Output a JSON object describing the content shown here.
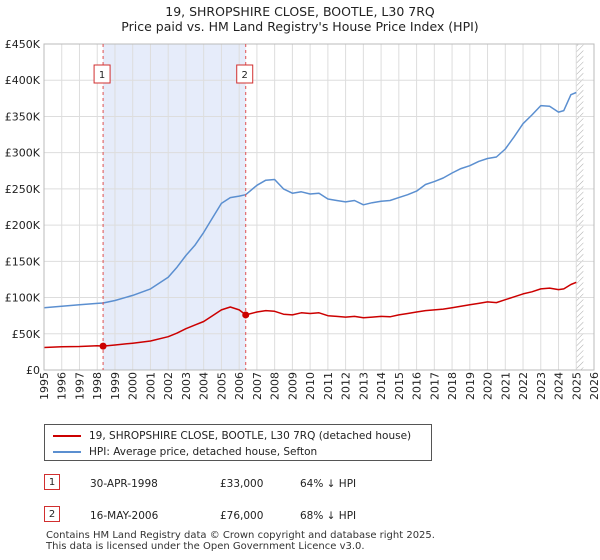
{
  "title_line1": "19, SHROPSHIRE CLOSE, BOOTLE, L30 7RQ",
  "title_line2": "Price paid vs. HM Land Registry's House Price Index (HPI)",
  "chart_data": {
    "type": "line",
    "title": "Price paid vs. HM Land Registry's House Price Index (HPI)",
    "xlabel": "",
    "ylabel": "",
    "xlim": [
      1995,
      2026
    ],
    "ylim": [
      0,
      450000
    ],
    "grid": true,
    "yticks": [
      {
        "value": 0,
        "label": "£0"
      },
      {
        "value": 50000,
        "label": "£50K"
      },
      {
        "value": 100000,
        "label": "£100K"
      },
      {
        "value": 150000,
        "label": "£150K"
      },
      {
        "value": 200000,
        "label": "£200K"
      },
      {
        "value": 250000,
        "label": "£250K"
      },
      {
        "value": 300000,
        "label": "£300K"
      },
      {
        "value": 350000,
        "label": "£350K"
      },
      {
        "value": 400000,
        "label": "£400K"
      },
      {
        "value": 450000,
        "label": "£450K"
      }
    ],
    "xticks": [
      "1995",
      "1996",
      "1997",
      "1998",
      "1999",
      "2000",
      "2001",
      "2002",
      "2003",
      "2004",
      "2005",
      "2006",
      "2007",
      "2008",
      "2009",
      "2010",
      "2011",
      "2012",
      "2013",
      "2014",
      "2015",
      "2016",
      "2017",
      "2018",
      "2019",
      "2020",
      "2021",
      "2022",
      "2023",
      "2024",
      "2025",
      "2026"
    ],
    "shaded_period": [
      1998.33,
      2006.37
    ],
    "forecast_from": 2025.0,
    "series": [
      {
        "name": "19, SHROPSHIRE CLOSE, BOOTLE, L30 7RQ (detached house)",
        "color": "#cc0000",
        "x": [
          1995.0,
          1996.0,
          1997.0,
          1998.0,
          1998.33,
          1999.0,
          2000.0,
          2001.0,
          2002.0,
          2002.5,
          2003.0,
          2003.5,
          2004.0,
          2004.5,
          2005.0,
          2005.5,
          2006.0,
          2006.37,
          2007.0,
          2007.5,
          2008.0,
          2008.5,
          2009.0,
          2009.5,
          2010.0,
          2010.5,
          2011.0,
          2011.5,
          2012.0,
          2012.5,
          2013.0,
          2013.5,
          2014.0,
          2014.5,
          2015.0,
          2015.5,
          2016.0,
          2016.5,
          2017.0,
          2017.5,
          2018.0,
          2018.5,
          2019.0,
          2019.5,
          2020.0,
          2020.5,
          2021.0,
          2021.5,
          2022.0,
          2022.5,
          2023.0,
          2023.5,
          2024.0,
          2024.3,
          2024.7,
          2025.0
        ],
        "y": [
          31000,
          32000,
          32500,
          33500,
          33000,
          34500,
          37000,
          40000,
          46000,
          51000,
          57000,
          62000,
          67000,
          75000,
          83000,
          87000,
          83000,
          76000,
          80000,
          82000,
          81000,
          77000,
          76000,
          79000,
          78000,
          79000,
          75000,
          74000,
          73000,
          74000,
          72000,
          73000,
          74000,
          73500,
          76000,
          78000,
          80000,
          82000,
          83000,
          84000,
          86000,
          88000,
          90000,
          92000,
          94000,
          93000,
          97000,
          101000,
          105000,
          108000,
          112000,
          113000,
          111000,
          112000,
          118000,
          121000
        ]
      },
      {
        "name": "HPI: Average price, detached house, Sefton",
        "color": "#5b8fd0",
        "x": [
          1995.0,
          1996.0,
          1997.0,
          1998.0,
          1998.33,
          1999.0,
          2000.0,
          2001.0,
          2002.0,
          2002.5,
          2003.0,
          2003.5,
          2004.0,
          2004.5,
          2005.0,
          2005.5,
          2006.0,
          2006.37,
          2007.0,
          2007.5,
          2008.0,
          2008.5,
          2009.0,
          2009.5,
          2010.0,
          2010.5,
          2011.0,
          2011.5,
          2012.0,
          2012.5,
          2013.0,
          2013.5,
          2014.0,
          2014.5,
          2015.0,
          2015.5,
          2016.0,
          2016.5,
          2017.0,
          2017.5,
          2018.0,
          2018.5,
          2019.0,
          2019.5,
          2020.0,
          2020.5,
          2021.0,
          2021.5,
          2022.0,
          2022.5,
          2023.0,
          2023.5,
          2024.0,
          2024.3,
          2024.7,
          2025.0
        ],
        "y": [
          86000,
          88000,
          90000,
          92000,
          92500,
          96000,
          103000,
          112000,
          128000,
          142000,
          158000,
          172000,
          190000,
          210000,
          230000,
          238000,
          240000,
          242000,
          255000,
          262000,
          263000,
          250000,
          244000,
          246000,
          243000,
          244000,
          236000,
          234000,
          232000,
          234000,
          228000,
          231000,
          233000,
          234000,
          238000,
          242000,
          247000,
          256000,
          260000,
          265000,
          272000,
          278000,
          282000,
          288000,
          292000,
          294000,
          305000,
          322000,
          340000,
          352000,
          365000,
          364000,
          356000,
          358000,
          380000,
          383000
        ]
      }
    ],
    "markers": [
      {
        "label": "1",
        "x": 1998.33,
        "y": 33000,
        "series": 0
      },
      {
        "label": "2",
        "x": 2006.37,
        "y": 76000,
        "series": 0
      }
    ]
  },
  "legend": [
    {
      "label": "19, SHROPSHIRE CLOSE, BOOTLE, L30 7RQ (detached house)",
      "color": "#cc0000"
    },
    {
      "label": "HPI: Average price, detached house, Sefton",
      "color": "#5b8fd0"
    }
  ],
  "sales": [
    {
      "num": "1",
      "date": "30-APR-1998",
      "price": "£33,000",
      "hpi": "64% ↓ HPI"
    },
    {
      "num": "2",
      "date": "16-MAY-2006",
      "price": "£76,000",
      "hpi": "68% ↓ HPI"
    }
  ],
  "footer_line1": "Contains HM Land Registry data © Crown copyright and database right 2025.",
  "footer_line2": "This data is licensed under the Open Government Licence v3.0."
}
